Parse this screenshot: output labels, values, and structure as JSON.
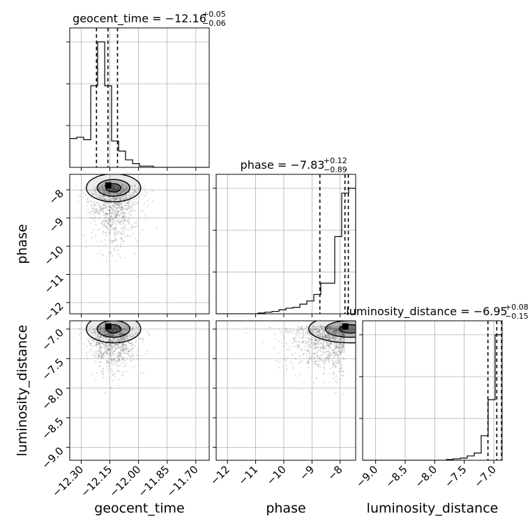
{
  "chart_data": {
    "type": "corner",
    "parameters": [
      "geocent_time",
      "phase",
      "luminosity_distance"
    ],
    "titles": [
      {
        "label": "geocent_time",
        "median": "−12.16",
        "plus": "+0.05",
        "minus": "−0.06"
      },
      {
        "label": "phase",
        "median": "−7.83",
        "plus": "+0.12",
        "minus": "−0.89"
      },
      {
        "label": "luminosity_distance",
        "median": "−6.95",
        "plus": "+0.08",
        "minus": "−0.15"
      }
    ],
    "ranges": {
      "geocent_time": [
        -12.36,
        -11.63
      ],
      "phase": [
        -12.4,
        -7.45
      ],
      "luminosity_distance": [
        -9.22,
        -6.86
      ]
    },
    "ticks": {
      "geocent_time": {
        "values": [
          -12.3,
          -12.15,
          -12.0,
          -11.85,
          -11.7
        ],
        "labels": [
          "−12.30",
          "−12.15",
          "−12.00",
          "−11.85",
          "−11.70"
        ]
      },
      "phase": {
        "values": [
          -12,
          -11,
          -10,
          -9,
          -8
        ],
        "labels": [
          "−12",
          "−11",
          "−10",
          "−9",
          "−8"
        ]
      },
      "luminosity_distance": {
        "values": [
          -9.0,
          -8.5,
          -8.0,
          -7.5,
          -7.0
        ],
        "labels": [
          "−9.0",
          "−8.5",
          "−8.0",
          "−7.5",
          "−7.0"
        ]
      }
    },
    "quantiles": {
      "geocent_time": [
        -12.22,
        -12.16,
        -12.11
      ],
      "phase": [
        -8.72,
        -7.83,
        -7.71
      ],
      "luminosity_distance": [
        -7.1,
        -6.95,
        -6.87
      ]
    },
    "histograms": {
      "geocent_time": {
        "edges": [
          -12.36,
          -12.323,
          -12.287,
          -12.25,
          -12.214,
          -12.177,
          -12.141,
          -12.104,
          -12.068,
          -12.031,
          -11.995,
          -11.958,
          -11.922,
          -11.885,
          -11.849,
          -11.812,
          -11.776,
          -11.739,
          -11.703,
          -11.666,
          -11.63
        ],
        "counts": [
          0.23,
          0.24,
          0.22,
          0.65,
          1.0,
          0.65,
          0.21,
          0.13,
          0.06,
          0.03,
          0.01,
          0.01,
          0,
          0,
          0,
          0,
          0,
          0,
          0,
          0
        ]
      },
      "phase": {
        "edges": [
          -12.4,
          -12.153,
          -11.905,
          -11.658,
          -11.41,
          -11.163,
          -10.915,
          -10.668,
          -10.42,
          -10.173,
          -9.925,
          -9.678,
          -9.43,
          -9.183,
          -8.935,
          -8.688,
          -8.44,
          -8.193,
          -7.945,
          -7.698,
          -7.45
        ],
        "counts": [
          0,
          0,
          0,
          0,
          0,
          0,
          0.005,
          0.01,
          0.015,
          0.025,
          0.035,
          0.04,
          0.06,
          0.08,
          0.12,
          0.19,
          0.19,
          0.48,
          0.75,
          0.78
        ]
      },
      "luminosity_distance": {
        "edges": [
          -9.22,
          -9.102,
          -8.984,
          -8.866,
          -8.748,
          -8.63,
          -8.512,
          -8.394,
          -8.276,
          -8.158,
          -8.04,
          -7.922,
          -7.804,
          -7.686,
          -7.568,
          -7.45,
          -7.332,
          -7.214,
          -7.096,
          -6.978,
          -6.86
        ],
        "counts": [
          0,
          0,
          0,
          0,
          0,
          0,
          0,
          0,
          0,
          0,
          0,
          0,
          0.005,
          0.01,
          0.015,
          0.03,
          0.05,
          0.17,
          0.42,
          0.87
        ]
      }
    },
    "grid": true,
    "point_color": "#000000",
    "contour_color": "#000000"
  }
}
